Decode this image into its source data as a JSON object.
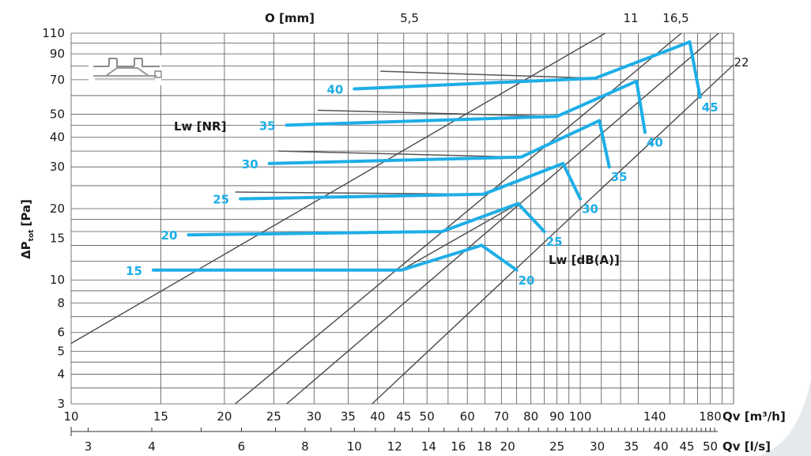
{
  "chart_data": {
    "type": "line",
    "title": "",
    "xlabel": "Qv [m³/h]",
    "x2label": "Qv [l/s]",
    "ylabel_main": "ΔP",
    "ylabel_sub": "tot",
    "ylabel_unit": "[Pa]",
    "top_axis_label": "O [mm]",
    "xscale": "log",
    "yscale": "log",
    "xlim": [
      10,
      200
    ],
    "ylim": [
      3,
      110
    ],
    "grid": true,
    "x_ticks": [
      10,
      15,
      20,
      25,
      30,
      35,
      40,
      45,
      50,
      60,
      70,
      80,
      90,
      100,
      140,
      180
    ],
    "x_tick_labels": [
      "10",
      "15",
      "20",
      "25",
      "30",
      "35",
      "40",
      "45",
      "50",
      "60",
      "70",
      "80",
      "90",
      "100",
      "140",
      "180"
    ],
    "x2_ticks_ls": [
      3,
      4,
      6,
      8,
      10,
      12,
      14,
      16,
      18,
      20,
      25,
      30,
      35,
      40,
      45,
      50
    ],
    "x2_tick_labels": [
      "3",
      "4",
      "6",
      "8",
      "10",
      "12",
      "14",
      "16",
      "18",
      "20",
      "25",
      "30",
      "35",
      "40",
      "45",
      "50"
    ],
    "y_ticks": [
      3,
      4,
      5,
      6,
      8,
      10,
      15,
      20,
      30,
      40,
      50,
      70,
      90,
      110
    ],
    "y_tick_labels": [
      "3",
      "4",
      "5",
      "6",
      "8",
      "10",
      "15",
      "20",
      "30",
      "40",
      "50",
      "70",
      "90",
      "110"
    ],
    "openings": [
      {
        "label": "5,5",
        "points": [
          [
            10,
            5.4
          ],
          [
            112,
            110
          ]
        ]
      },
      {
        "label": "11",
        "points": [
          [
            21,
            3
          ],
          [
            158,
            110
          ]
        ]
      },
      {
        "label": "16,5",
        "points": [
          [
            26.5,
            3
          ],
          [
            187,
            110
          ]
        ]
      },
      {
        "label": "22",
        "points": [
          [
            39,
            3
          ],
          [
            200,
            81
          ]
        ]
      }
    ],
    "nr_curves": [
      {
        "label": "40",
        "points": [
          [
            36,
            64
          ],
          [
            107,
            71
          ],
          [
            164,
            101
          ]
        ],
        "thin": [
          [
            40.5,
            76
          ],
          [
            107,
            71
          ]
        ]
      },
      {
        "label": "35",
        "points": [
          [
            26.5,
            45
          ],
          [
            90,
            49
          ],
          [
            129,
            69
          ]
        ],
        "thin": [
          [
            30.5,
            52
          ],
          [
            90,
            49
          ]
        ]
      },
      {
        "label": "30",
        "points": [
          [
            24.5,
            31
          ],
          [
            76.5,
            33
          ],
          [
            109,
            47
          ]
        ],
        "thin": [
          [
            25.5,
            35
          ],
          [
            76.5,
            33
          ]
        ]
      },
      {
        "label": "25",
        "points": [
          [
            21.5,
            22
          ],
          [
            64.5,
            23
          ],
          [
            92.5,
            31
          ]
        ],
        "thin": [
          [
            21,
            23.5
          ],
          [
            64.5,
            23
          ]
        ]
      },
      {
        "label": "20",
        "points": [
          [
            17,
            15.5
          ],
          [
            53.5,
            16
          ],
          [
            75.5,
            21
          ]
        ],
        "thin": []
      },
      {
        "label": "15",
        "points": [
          [
            14.5,
            11
          ],
          [
            44.5,
            11
          ],
          [
            64,
            14
          ]
        ],
        "thin": [
          [
            44.5,
            11
          ],
          [
            75.5,
            21
          ]
        ]
      }
    ],
    "dba_curves": [
      {
        "label": "45",
        "points": [
          [
            164,
            101
          ],
          [
            172,
            59
          ]
        ]
      },
      {
        "label": "40",
        "points": [
          [
            129,
            69
          ],
          [
            134,
            42
          ]
        ]
      },
      {
        "label": "35",
        "points": [
          [
            109,
            47
          ],
          [
            114,
            30
          ]
        ]
      },
      {
        "label": "30",
        "points": [
          [
            92.5,
            31
          ],
          [
            100,
            22
          ]
        ]
      },
      {
        "label": "25",
        "points": [
          [
            75.5,
            21
          ],
          [
            85,
            16
          ]
        ]
      },
      {
        "label": "20",
        "points": [
          [
            64,
            14
          ],
          [
            75,
            11
          ]
        ]
      }
    ],
    "annotations": {
      "nr": "Lw [NR]",
      "dba": "Lw [dB(A)]"
    },
    "colors": {
      "curve": "#1eaee7",
      "grid": "#555555",
      "line": "#4a4a4a",
      "background": "#ffffff",
      "corner": "#e6e9ec"
    }
  }
}
